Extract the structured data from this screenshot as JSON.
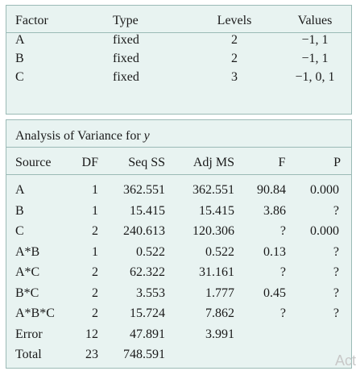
{
  "factor_table": {
    "headers": [
      "Factor",
      "Type",
      "Levels",
      "Values"
    ],
    "rows": [
      [
        "A",
        "fixed",
        "2",
        "−1, 1"
      ],
      [
        "B",
        "fixed",
        "2",
        "−1, 1"
      ],
      [
        "C",
        "fixed",
        "3",
        "−1, 0, 1"
      ]
    ]
  },
  "anova_table": {
    "title_prefix": "Analysis of Variance for ",
    "title_variable": "y",
    "headers": [
      "Source",
      "DF",
      "Seq SS",
      "Adj MS",
      "F",
      "P"
    ],
    "rows": [
      [
        "A",
        "1",
        "362.551",
        "362.551",
        "90.84",
        "0.000"
      ],
      [
        "B",
        "1",
        "15.415",
        "15.415",
        "3.86",
        "?"
      ],
      [
        "C",
        "2",
        "240.613",
        "120.306",
        "?",
        "0.000"
      ],
      [
        "A*B",
        "1",
        "0.522",
        "0.522",
        "0.13",
        "?"
      ],
      [
        "A*C",
        "2",
        "62.322",
        "31.161",
        "?",
        "?"
      ],
      [
        "B*C",
        "2",
        "3.553",
        "1.777",
        "0.45",
        "?"
      ],
      [
        "A*B*C",
        "2",
        "15.724",
        "7.862",
        "?",
        "?"
      ],
      [
        "Error",
        "12",
        "47.891",
        "3.991",
        "",
        ""
      ],
      [
        "Total",
        "23",
        "748.591",
        "",
        "",
        ""
      ]
    ]
  },
  "watermark": "Acti"
}
